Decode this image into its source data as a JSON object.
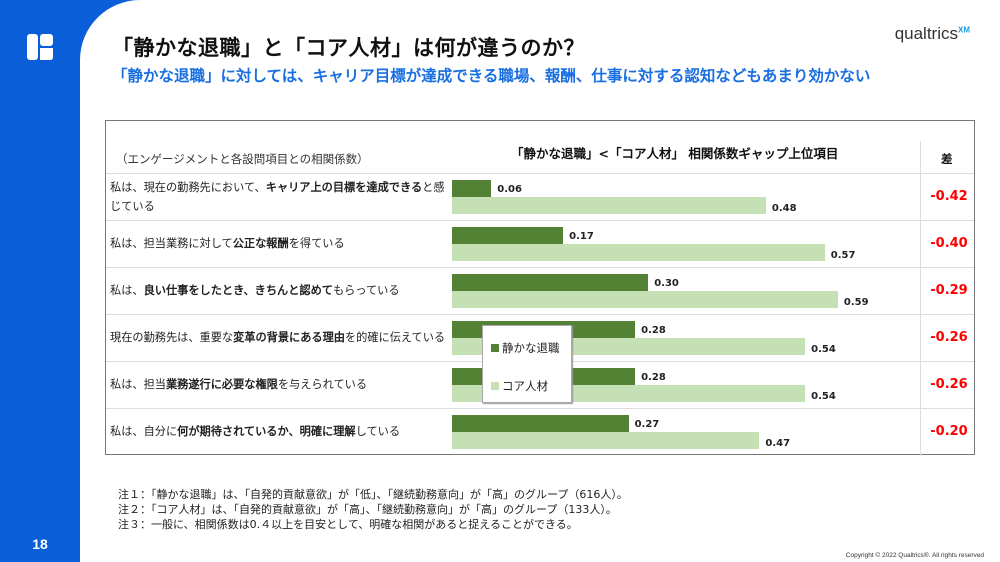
{
  "page": {
    "number": "18",
    "title": "「静かな退職」と「コア人材」は何が違うのか？",
    "subtitle": "「静かな退職」に対しては、キャリア目標が達成できる職場、報酬、仕事に対する認知などもあまり効かない",
    "brand": "qualtrics",
    "brand_sup": "XM",
    "copyright": "Copyright © 2022 Qualtrics®. All rights reserved"
  },
  "table": {
    "header_note": "（エンゲージメントと各設問項目との相関係数）",
    "header_title": "「静かな退職」<「コア人材」 相関係数ギャップ上位項目",
    "header_diff": "差"
  },
  "colors": {
    "quiet": "#548235",
    "core": "#c5e0b4",
    "diff": "#ff0000",
    "accent": "#0a5ed7"
  },
  "chart_data": {
    "type": "bar",
    "orientation": "horizontal",
    "title": "「静かな退職」<「コア人材」 相関係数ギャップ上位項目",
    "xlabel": "",
    "ylabel": "（エンゲージメントと各設問項目との相関係数）",
    "legend": {
      "position": "center",
      "entries": [
        "静かな退職",
        "コア人材"
      ]
    },
    "categories": [
      {
        "parts": [
          [
            "私は、現在の勤務先において、",
            false
          ],
          [
            "キャリア上の目標を達成できる",
            true
          ],
          [
            "と感じている",
            false
          ]
        ]
      },
      {
        "parts": [
          [
            "私は、担当業務に対して",
            false
          ],
          [
            "公正な報酬",
            true
          ],
          [
            "を得ている",
            false
          ]
        ]
      },
      {
        "parts": [
          [
            "私は、",
            false
          ],
          [
            "良い仕事をしたとき、きちんと認めて",
            true
          ],
          [
            "もらっている",
            false
          ]
        ]
      },
      {
        "parts": [
          [
            "現在の勤務先は、重要な",
            false
          ],
          [
            "変革の背景にある理由",
            true
          ],
          [
            "を的確に伝えている",
            false
          ]
        ]
      },
      {
        "parts": [
          [
            "私は、担当",
            false
          ],
          [
            "業務遂行に必要な権限",
            true
          ],
          [
            "を与えられている",
            false
          ]
        ]
      },
      {
        "parts": [
          [
            "私は、自分に",
            false
          ],
          [
            "何が期待されているか、明確に理解",
            true
          ],
          [
            "している",
            false
          ]
        ]
      }
    ],
    "series": [
      {
        "name": "静かな退職",
        "values": [
          0.06,
          0.17,
          0.3,
          0.28,
          0.28,
          0.27
        ],
        "labels": [
          "0.06",
          "0.17",
          "0.30",
          "0.28",
          "0.28",
          "0.27"
        ]
      },
      {
        "name": "コア人材",
        "values": [
          0.48,
          0.57,
          0.59,
          0.54,
          0.54,
          0.47
        ],
        "labels": [
          "0.48",
          "0.57",
          "0.59",
          "0.54",
          "0.54",
          "0.47"
        ]
      }
    ],
    "diff_column": {
      "header": "差",
      "values": [
        "-0.42",
        "-0.40",
        "-0.29",
        "-0.26",
        "-0.26",
        "-0.20"
      ]
    },
    "xlim": [
      0,
      0.7
    ]
  },
  "notes": [
    "注１：「静かな退職」は、「自発的貢献意欲」が「低」、「継続勤務意向」が「高」のグループ（616人）。",
    "注２：「コア人材」は、「自発的貢献意欲」が「高」、「継続勤務意向」が「高」のグループ（133人）。",
    "注３：一般に、相関係数は0.４以上を目安として、明確な相関があると捉えることができる。"
  ]
}
